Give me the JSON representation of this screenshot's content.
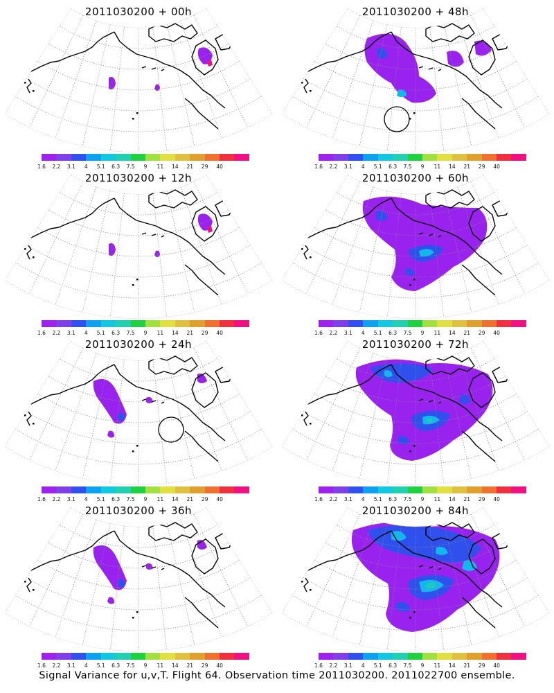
{
  "caption": "Signal Variance for u,v,T. Flight 64. Observation time 2011030200. 2011022700 ensemble.",
  "colorbar": {
    "ticks": [
      "1.6",
      "2.2",
      "3.1",
      "4",
      "5.1",
      "6.3",
      "7.5",
      "9",
      "11",
      "14",
      "21",
      "29",
      "40"
    ],
    "colors": [
      "#a020f0",
      "#8040e8",
      "#3050f0",
      "#10a0f0",
      "#10c8e0",
      "#20d0b0",
      "#20d040",
      "#a0e040",
      "#e0e040",
      "#e0c040",
      "#e0a030",
      "#f07030",
      "#f03040",
      "#f01080"
    ]
  },
  "colors": {
    "land_outline": "#000000",
    "grid": "#8a8a8a",
    "low": "#9a22ee",
    "mid": "#3050ee",
    "cyan": "#10b8ee",
    "teal": "#20c8c0",
    "pink": "#f01080"
  },
  "panels": [
    {
      "title": "2011030200 + 00h",
      "level": 0
    },
    {
      "title": "2011030200 + 48h",
      "level": 2
    },
    {
      "title": "2011030200 + 12h",
      "level": 0
    },
    {
      "title": "2011030200 + 60h",
      "level": 3
    },
    {
      "title": "2011030200 + 24h",
      "level": 1
    },
    {
      "title": "2011030200 + 72h",
      "level": 4
    },
    {
      "title": "2011030200 + 36h",
      "level": 1
    },
    {
      "title": "2011030200 + 84h",
      "level": 5
    }
  ]
}
